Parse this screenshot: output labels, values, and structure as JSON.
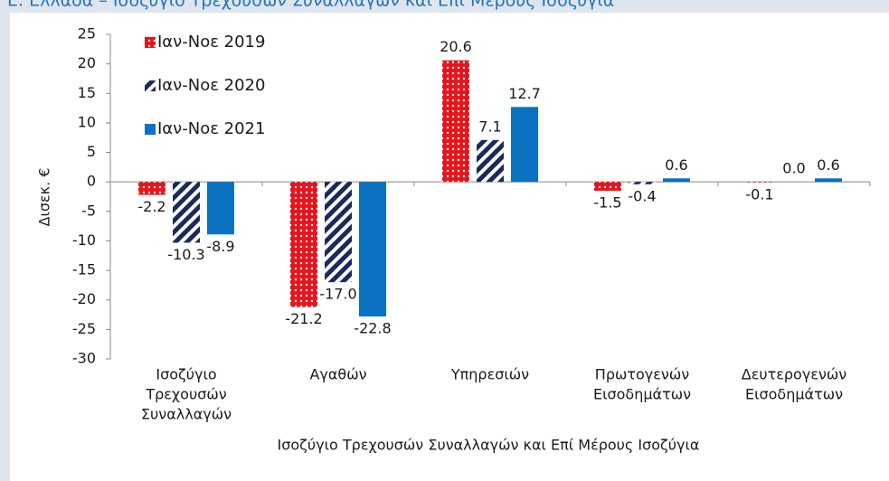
{
  "chart_data": {
    "type": "bar",
    "title": "Ε. Ελλάδα – Ισοζύγιο Τρεχουσών Συναλλαγών και Επί Μέρους Ισοζύγια",
    "ylabel": "Δισεκ. €",
    "xlabel": "Ισοζύγιο Τρεχουσών Συναλλαγών και Επί Μέρους Ισοζύγια",
    "categories": [
      [
        "Ισοζύγιο",
        "Τρεχουσών",
        "Συναλλαγών"
      ],
      [
        "Αγαθών"
      ],
      [
        "Υπηρεσιών"
      ],
      [
        "Πρωτογενών",
        "Εισοδημάτων"
      ],
      [
        "Δευτερογενών",
        "Εισοδημάτων"
      ]
    ],
    "series": [
      {
        "name": "Ιαν-Νοε 2019",
        "color": "#e8141c",
        "pattern": "dots",
        "values": [
          -2.2,
          -21.2,
          20.6,
          -1.5,
          -0.1
        ],
        "value_labels": [
          "-2.2",
          "-21.2",
          "20.6",
          "-1.5",
          "-0.1"
        ]
      },
      {
        "name": "Ιαν-Νοε 2020",
        "color": "#1b2a5c",
        "pattern": "stripes",
        "values": [
          -10.3,
          -17,
          7.1,
          -0.4,
          0
        ],
        "value_labels": [
          "-10.3",
          "-17.0",
          "7.1",
          "-0.4",
          "0.0"
        ]
      },
      {
        "name": "Ιαν-Νοε 2021",
        "color": "#0b72c2",
        "pattern": "solid",
        "values": [
          -8.9,
          -22.8,
          12.7,
          0.6,
          0.6
        ],
        "value_labels": [
          "-8.9",
          "-22.8",
          "12.7",
          "0.6",
          "0.6"
        ]
      }
    ],
    "ylim": [
      -30,
      25
    ],
    "yticks": [
      -30,
      -25,
      -20,
      -15,
      -10,
      -5,
      0,
      5,
      10,
      15,
      20,
      25
    ],
    "legend": "top-left"
  }
}
